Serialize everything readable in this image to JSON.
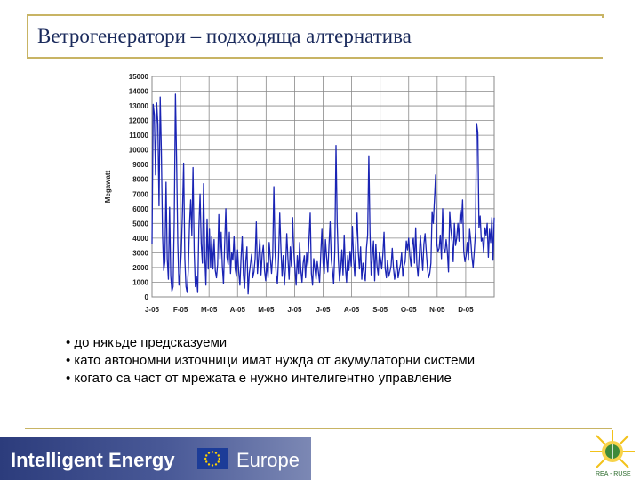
{
  "slide": {
    "title": "Ветрогенератори – подходяща алтернатива",
    "bullets": [
      "• до някъде предсказуеми",
      "• като автономни източници имат нужда от акумулаторни системи",
      "• когато са част от мрежата е нужно интелигентно управление"
    ]
  },
  "footer": {
    "brand_left": "Intelligent Energy",
    "brand_right": "Europe",
    "logo_text": "REA - RUSE"
  },
  "colors": {
    "frame": "#c8b464",
    "title": "#1a2a5c",
    "series": "#1a24b4",
    "grid": "#8a8a8a"
  },
  "chart_data": {
    "type": "line",
    "title": "",
    "xlabel": "",
    "ylabel": "Megawatt",
    "ylim": [
      0,
      15000
    ],
    "grid": true,
    "yticks": [
      0,
      1000,
      2000,
      3000,
      4000,
      5000,
      6000,
      7000,
      8000,
      9000,
      10000,
      11000,
      12000,
      13000,
      14000,
      15000
    ],
    "xticks": [
      "J-05",
      "F-05",
      "M-05",
      "A-05",
      "M-05",
      "J-05",
      "J-05",
      "A-05",
      "S-05",
      "O-05",
      "N-05",
      "D-05"
    ],
    "series": [
      {
        "name": "",
        "color": "#1a24b4",
        "values": [
          3600,
          13100,
          12400,
          8300,
          13200,
          11800,
          6200,
          13600,
          9800,
          4200,
          1800,
          2400,
          7800,
          2600,
          1200,
          6100,
          1400,
          400,
          700,
          5200,
          13800,
          9200,
          3600,
          800,
          1600,
          3100,
          5800,
          9100,
          2600,
          700,
          300,
          1900,
          4900,
          6600,
          4200,
          8800,
          3100,
          700,
          1400,
          300,
          4700,
          7000,
          3600,
          2300,
          7700,
          2800,
          800,
          5300,
          1900,
          4600,
          2000,
          4100,
          1900,
          3900,
          1800,
          1300,
          2200,
          5600,
          2600,
          4400,
          2100,
          900,
          3600,
          6000,
          2700,
          2200,
          4400,
          1600,
          3000,
          2500,
          4100,
          1900,
          1400,
          3200,
          1700,
          800,
          2700,
          4100,
          1500,
          600,
          2400,
          3400,
          200,
          1600,
          2200,
          2900,
          1300,
          1700,
          2600,
          5100,
          1600,
          2700,
          3900,
          1500,
          2900,
          3500,
          1800,
          1100,
          2300,
          1300,
          3700,
          2600,
          1600,
          2800,
          7500,
          3100,
          1500,
          900,
          2700,
          5700,
          3300,
          1400,
          2800,
          800,
          2100,
          4300,
          2600,
          1200,
          3400,
          2100,
          5400,
          3100,
          1900,
          800,
          2800,
          1600,
          3700,
          1800,
          1000,
          2300,
          2800,
          1300,
          3000,
          2100,
          4000,
          5700,
          1600,
          800,
          2600,
          1900,
          1200,
          2400,
          1700,
          1000,
          2900,
          4600,
          2300,
          1600,
          3900,
          2700,
          1700,
          3500,
          5100,
          2500,
          1800,
          900,
          3200,
          10300,
          5100,
          2500,
          1100,
          1900,
          3200,
          1500,
          4200,
          2000,
          1000,
          2800,
          1800,
          3100,
          2100,
          4800,
          2600,
          1400,
          3700,
          5700,
          3100,
          1900,
          3400,
          1200,
          2300,
          1600,
          1100,
          3300,
          4200,
          9600,
          4400,
          1500,
          2700,
          3800,
          1100,
          3600,
          2100,
          1500,
          3000,
          2600,
          1900,
          2900,
          4400,
          1900,
          1300,
          2500,
          1400,
          1700,
          2100,
          3300,
          2000,
          1200,
          1700,
          2500,
          1300,
          1800,
          2200,
          3000,
          1400,
          2100,
          2400,
          3800,
          3200,
          4000,
          2800,
          2100,
          3500,
          4000,
          2300,
          4700,
          2200,
          1400,
          2800,
          4200,
          3000,
          1800,
          3600,
          4300,
          3100,
          2000,
          1300,
          1600,
          2300,
          5800,
          5000,
          6600,
          8300,
          3600,
          3100,
          3300,
          4200,
          2600,
          6000,
          3300,
          3000,
          3900,
          3100,
          1700,
          5800,
          4600,
          3800,
          2400,
          5000,
          3500,
          4000,
          5000,
          3800,
          5900,
          5000,
          6600,
          3100,
          2400,
          2800,
          3700,
          2500,
          4600,
          3800,
          2700,
          2000,
          3100,
          4400,
          11800,
          11200,
          4700,
          5500,
          3800,
          4000,
          3000,
          4700,
          4200,
          5000,
          2700,
          4600,
          3700,
          5400,
          2500,
          5400
        ]
      }
    ]
  }
}
